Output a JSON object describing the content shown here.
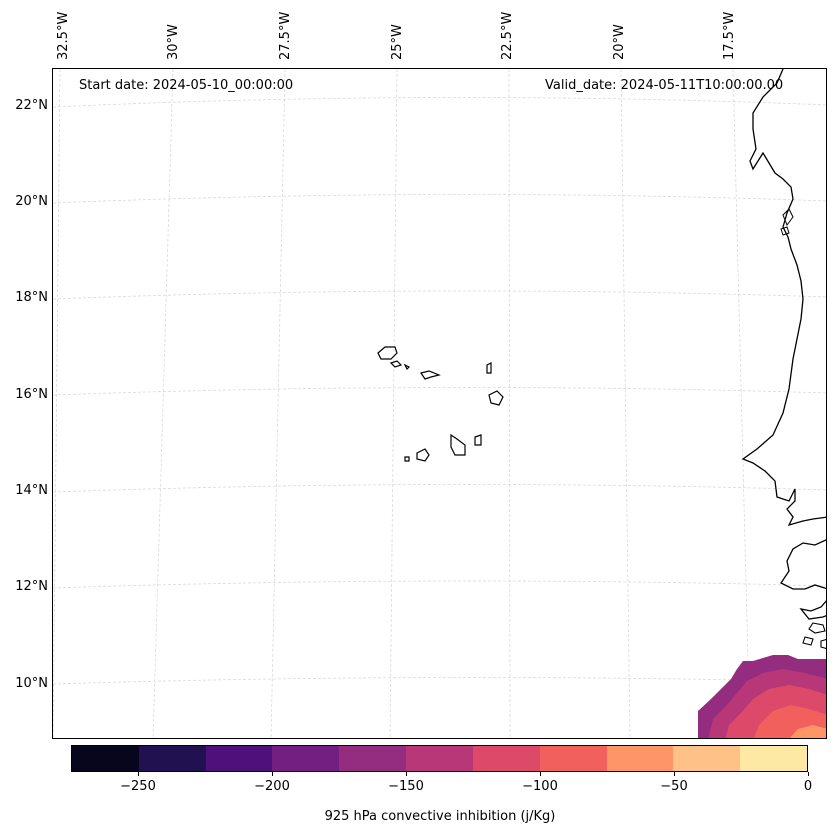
{
  "map": {
    "start_date": "Start date: 2024-05-10_00:00:00",
    "valid_date": "Valid_date: 2024-05-11T10:00:00.00",
    "lon_labels": [
      "32.5°W",
      "30°W",
      "27.5°W",
      "25°W",
      "22.5°W",
      "20°W",
      "17.5°W"
    ],
    "lat_labels": [
      "22°N",
      "20°N",
      "18°N",
      "16°N",
      "14°N",
      "12°N",
      "10°N"
    ],
    "gridline_color": "#d9d9d9",
    "coastline_color": "#000000"
  },
  "chart_data": {
    "type": "heatmap",
    "variable": "925 hPa convective inhibition",
    "colorbar": {
      "label": "925 hPa convective inhibition (j/Kg)",
      "levels": [
        -275,
        -250,
        -225,
        -200,
        -175,
        -150,
        -125,
        -100,
        -75,
        -50,
        -25,
        0
      ],
      "tick_values": [
        -250,
        -200,
        -150,
        -100,
        -50,
        0
      ],
      "tick_labels": [
        "−250",
        "−200",
        "−150",
        "−100",
        "−50",
        "0"
      ],
      "colors": [
        "#07061c",
        "#221150",
        "#4e117b",
        "#721f81",
        "#942c80",
        "#b73779",
        "#dd4968",
        "#f1605d",
        "#fd9567",
        "#fec186",
        "#fde8a4"
      ]
    },
    "extent": {
      "lon_min": -32.7,
      "lon_max": -15.9,
      "lat_min": 8.9,
      "lat_max": 22.8
    },
    "shaded_region": "south-east corner near 9-10.5°N, 16-18°W"
  }
}
